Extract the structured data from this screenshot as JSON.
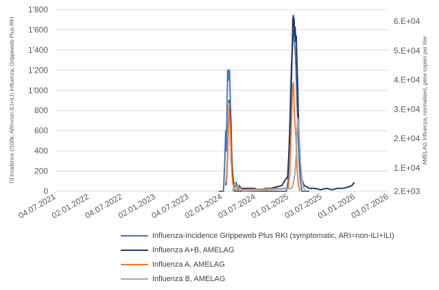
{
  "chart_data": {
    "type": "line",
    "grid": true,
    "y_left": {
      "label": "7d Incidence (/100k, ARI=non-ILI+ILI) Influenza, Grippeweb Plus RKI",
      "ticks": [
        "0",
        "200",
        "400",
        "600",
        "800",
        "1'000",
        "1'200",
        "1'400",
        "1'600",
        "1'800"
      ],
      "range": [
        0,
        1800
      ]
    },
    "y_right": {
      "label": "AMELAG Influenza, normalised, gene copies per liter",
      "ticks": [
        "2.E+03",
        "1.E+04",
        "2.E+04",
        "3.E+04",
        "4.E+04",
        "5.E+04",
        "6.E+04"
      ],
      "tick_values": [
        2000,
        10000,
        20000,
        30000,
        40000,
        50000,
        60000
      ],
      "range": [
        2000,
        64000
      ]
    },
    "x_axis": {
      "ticks": [
        "04.07.2021",
        "02.01.2022",
        "04.07.2022",
        "02.01.2023",
        "04.07.2023",
        "02.01.2024",
        "03.07.2024",
        "01.01.2025",
        "03.07.2025",
        "01.01.2026",
        "03.07.2026"
      ],
      "tick_values": [
        "2021-07-04",
        "2022-01-02",
        "2022-07-04",
        "2023-01-02",
        "2023-07-04",
        "2024-01-02",
        "2024-07-03",
        "2025-01-01",
        "2025-07-03",
        "2026-01-01",
        "2026-07-03"
      ]
    },
    "series": [
      {
        "name": "Influenza-Incidence Grippeweb Plus RKI (symptomatic, ARI=non-ILI+ILI)",
        "axis": "left",
        "color": "#4472c4",
        "points": [
          [
            "2023-12-20",
            0
          ],
          [
            "2024-01-15",
            0
          ],
          [
            "2024-01-22",
            300
          ],
          [
            "2024-01-27",
            600
          ],
          [
            "2024-01-30",
            400
          ],
          [
            "2024-02-03",
            800
          ],
          [
            "2024-02-07",
            1200
          ],
          [
            "2024-02-10",
            1100
          ],
          [
            "2024-02-13",
            1200
          ],
          [
            "2024-02-17",
            1200
          ],
          [
            "2024-02-21",
            900
          ],
          [
            "2024-02-26",
            500
          ],
          [
            "2024-03-02",
            200
          ],
          [
            "2024-03-08",
            80
          ],
          [
            "2024-03-15",
            0
          ],
          [
            "2024-05-01",
            0
          ],
          [
            "2024-12-25",
            0
          ],
          [
            "2025-01-03",
            100
          ],
          [
            "2025-01-10",
            500
          ],
          [
            "2025-01-17",
            1000
          ],
          [
            "2025-01-23",
            1300
          ],
          [
            "2025-01-28",
            1450
          ],
          [
            "2025-02-02",
            1600
          ],
          [
            "2025-02-06",
            1500
          ],
          [
            "2025-02-11",
            1400
          ],
          [
            "2025-02-16",
            1200
          ],
          [
            "2025-02-21",
            900
          ],
          [
            "2025-02-27",
            600
          ],
          [
            "2025-03-05",
            300
          ],
          [
            "2025-03-12",
            100
          ],
          [
            "2025-03-20",
            0
          ],
          [
            "2025-04-30",
            0
          ]
        ]
      },
      {
        "name": "Influenza A+B, AMELAG",
        "axis": "right",
        "color": "#203864",
        "points": [
          [
            "2024-01-28",
            4000
          ],
          [
            "2024-02-03",
            9000
          ],
          [
            "2024-02-06",
            14000
          ],
          [
            "2024-02-10",
            24000
          ],
          [
            "2024-02-12",
            28000
          ],
          [
            "2024-02-15",
            33000
          ],
          [
            "2024-02-17",
            27000
          ],
          [
            "2024-02-21",
            30000
          ],
          [
            "2024-02-25",
            25000
          ],
          [
            "2024-03-01",
            12000
          ],
          [
            "2024-03-08",
            6000
          ],
          [
            "2024-03-14",
            3000
          ],
          [
            "2024-03-24",
            5000
          ],
          [
            "2024-04-01",
            3000
          ],
          [
            "2024-04-10",
            4000
          ],
          [
            "2024-04-20",
            3000
          ],
          [
            "2024-05-01",
            3000
          ],
          [
            "2024-06-01",
            3000
          ],
          [
            "2024-07-01",
            3000
          ],
          [
            "2024-08-01",
            2500
          ],
          [
            "2024-09-01",
            3000
          ],
          [
            "2024-10-01",
            3000
          ],
          [
            "2024-11-01",
            3500
          ],
          [
            "2024-12-01",
            4000
          ],
          [
            "2024-12-20",
            6000
          ],
          [
            "2025-01-01",
            7000
          ],
          [
            "2025-01-08",
            15000
          ],
          [
            "2025-01-13",
            22000
          ],
          [
            "2025-01-18",
            30000
          ],
          [
            "2025-01-23",
            43000
          ],
          [
            "2025-01-26",
            50000
          ],
          [
            "2025-01-29",
            60000
          ],
          [
            "2025-02-01",
            62000
          ],
          [
            "2025-02-03",
            58000
          ],
          [
            "2025-02-05",
            61000
          ],
          [
            "2025-02-08",
            55000
          ],
          [
            "2025-02-11",
            58000
          ],
          [
            "2025-02-14",
            53000
          ],
          [
            "2025-02-17",
            55000
          ],
          [
            "2025-02-20",
            48000
          ],
          [
            "2025-02-24",
            40000
          ],
          [
            "2025-03-01",
            28000
          ],
          [
            "2025-03-06",
            18000
          ],
          [
            "2025-03-12",
            10000
          ],
          [
            "2025-03-20",
            6000
          ],
          [
            "2025-04-01",
            4000
          ],
          [
            "2025-05-01",
            3000
          ],
          [
            "2025-06-01",
            3000
          ],
          [
            "2025-07-01",
            2500
          ],
          [
            "2025-08-01",
            3000
          ],
          [
            "2025-09-01",
            2500
          ],
          [
            "2025-10-01",
            3000
          ],
          [
            "2025-11-01",
            3000
          ],
          [
            "2025-12-01",
            3500
          ],
          [
            "2025-12-20",
            4000
          ],
          [
            "2026-01-01",
            5000
          ]
        ]
      },
      {
        "name": "Influenza A, AMELAG",
        "axis": "right",
        "color": "#ed7d31",
        "points": [
          [
            "2024-01-30",
            5000
          ],
          [
            "2024-02-04",
            10000
          ],
          [
            "2024-02-08",
            18000
          ],
          [
            "2024-02-12",
            28000
          ],
          [
            "2024-02-15",
            32000
          ],
          [
            "2024-02-18",
            27000
          ],
          [
            "2024-02-22",
            23000
          ],
          [
            "2024-02-27",
            12000
          ],
          [
            "2024-03-05",
            5000
          ],
          [
            "2024-03-15",
            2500
          ],
          [
            "2025-01-05",
            3000
          ],
          [
            "2025-01-12",
            8000
          ],
          [
            "2025-01-18",
            18000
          ],
          [
            "2025-01-24",
            30000
          ],
          [
            "2025-01-28",
            38000
          ],
          [
            "2025-02-02",
            39000
          ],
          [
            "2025-02-06",
            30000
          ],
          [
            "2025-02-10",
            25000
          ],
          [
            "2025-02-16",
            20000
          ],
          [
            "2025-02-22",
            10000
          ],
          [
            "2025-03-01",
            4000
          ],
          [
            "2025-03-10",
            2000
          ]
        ]
      },
      {
        "name": "Influenza B, AMELAG",
        "axis": "right",
        "color": "#a5a5a5",
        "points": [
          [
            "2024-03-05",
            2000
          ],
          [
            "2024-03-14",
            4000
          ],
          [
            "2024-03-20",
            5000
          ],
          [
            "2024-03-28",
            3000
          ],
          [
            "2024-04-05",
            4000
          ],
          [
            "2024-04-12",
            2500
          ],
          [
            "2024-04-20",
            3000
          ],
          [
            "2024-05-01",
            2000
          ],
          [
            "2025-01-25",
            3000
          ],
          [
            "2025-02-02",
            5000
          ],
          [
            "2025-02-10",
            8000
          ],
          [
            "2025-02-16",
            14000
          ],
          [
            "2025-02-21",
            22000
          ],
          [
            "2025-02-25",
            27000
          ],
          [
            "2025-03-01",
            26000
          ],
          [
            "2025-03-06",
            20000
          ],
          [
            "2025-03-12",
            12000
          ],
          [
            "2025-03-20",
            6000
          ],
          [
            "2025-03-30",
            3000
          ],
          [
            "2025-04-10",
            2000
          ]
        ]
      }
    ]
  }
}
